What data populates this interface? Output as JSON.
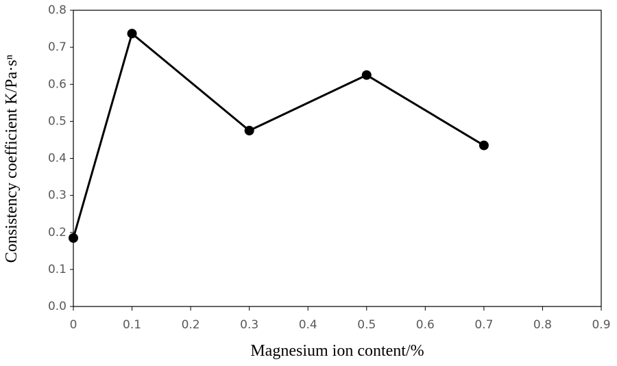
{
  "chart_data": {
    "type": "line",
    "x_label": "Magnesium ion content/%",
    "y_label": "Consistency coefficient K/Pa·sⁿ",
    "x": [
      0,
      0.1,
      0.3,
      0.5,
      0.7
    ],
    "series": [
      {
        "color": "#000000",
        "values": [
          0.185,
          0.737,
          0.475,
          0.625,
          0.435
        ]
      }
    ],
    "xlim": [
      0,
      0.9
    ],
    "xticks": [
      0,
      0.1,
      0.2,
      0.3,
      0.4,
      0.5,
      0.6,
      0.7,
      0.8,
      0.9
    ],
    "ylim": [
      0,
      0.8
    ],
    "yticks": [
      {
        "value": 0,
        "label": "0.0"
      },
      0.1,
      0.2,
      0.3,
      0.4,
      0.5,
      0.6,
      0.7,
      0.8
    ]
  }
}
